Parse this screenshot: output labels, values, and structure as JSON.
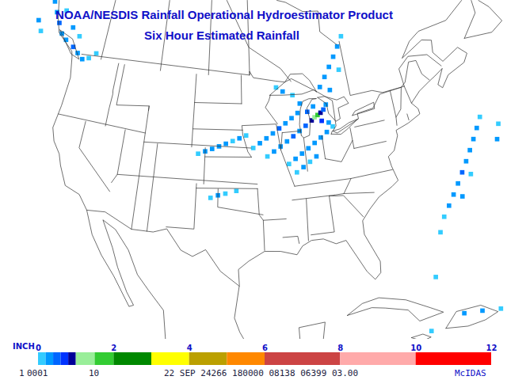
{
  "chart_data": {
    "type": "map",
    "title": "NOAA/NESDIS Rainfall Operational Hydroestimator Product",
    "subtitle": "Six Hour Estimated Rainfall",
    "colorbar": {
      "label": "INCH",
      "range": [
        0,
        12
      ],
      "ticks": [
        0,
        2,
        4,
        6,
        8,
        10,
        12
      ],
      "breaks": [
        0,
        0.2,
        0.4,
        0.6,
        0.8,
        1,
        1.5,
        2,
        3,
        4,
        5,
        6,
        8,
        10,
        12
      ],
      "colors": [
        "#33ccff",
        "#0099ff",
        "#0066ff",
        "#0033ff",
        "#000099",
        "#99ee99",
        "#33cc33",
        "#008800",
        "#ffff00",
        "#bba000",
        "#ff8800",
        "#cc4444",
        "#ffaaaa",
        "#ff0000"
      ]
    },
    "cells": [
      [
        -133,
        55.5,
        0.1
      ],
      [
        -131.5,
        54.5,
        0.2
      ],
      [
        -130.5,
        53.5,
        0.3
      ],
      [
        -129.5,
        52.5,
        0.2
      ],
      [
        -128.5,
        51.5,
        0.4
      ],
      [
        -127.5,
        50.5,
        0.3
      ],
      [
        -126.5,
        50,
        0.2
      ],
      [
        -125,
        49.5,
        0.5
      ],
      [
        -124,
        49,
        0.3
      ],
      [
        -123,
        48.5,
        0.2
      ],
      [
        -122,
        48.8,
        0.1
      ],
      [
        -126,
        51.5,
        0.2
      ],
      [
        -124.5,
        50.8,
        0.1
      ],
      [
        -128,
        53,
        0.1
      ],
      [
        -121,
        49.5,
        0.1
      ],
      [
        -132,
        51,
        0.2
      ],
      [
        -131,
        50,
        0.1
      ],
      [
        -103,
        40.3,
        0.1
      ],
      [
        -102,
        40.6,
        0.2
      ],
      [
        -101,
        40.9,
        0.2
      ],
      [
        -100,
        41.2,
        0.3
      ],
      [
        -99,
        41.5,
        0.2
      ],
      [
        -98,
        41.8,
        0.1
      ],
      [
        -97,
        42.1,
        0.2
      ],
      [
        -96,
        42.4,
        0.1
      ],
      [
        -101,
        35.5,
        0.1
      ],
      [
        -100,
        35.8,
        0.2
      ],
      [
        -99,
        36,
        0.1
      ],
      [
        -97.5,
        36.3,
        0.1
      ],
      [
        -95,
        41,
        0.1
      ],
      [
        -94,
        41.5,
        0.2
      ],
      [
        -93,
        42,
        0.3
      ],
      [
        -92,
        42.5,
        0.2
      ],
      [
        -91,
        43,
        0.4
      ],
      [
        -90,
        43.5,
        0.3
      ],
      [
        -89,
        44,
        0.2
      ],
      [
        -88,
        44.5,
        0.3
      ],
      [
        -87.5,
        45.5,
        0.2
      ],
      [
        -88.5,
        46.5,
        0.1
      ],
      [
        -90,
        47,
        0.2
      ],
      [
        -91,
        47.5,
        0.1
      ],
      [
        -93,
        40,
        0.1
      ],
      [
        -92,
        40.5,
        0.2
      ],
      [
        -91,
        41,
        0.3
      ],
      [
        -90,
        41.5,
        0.2
      ],
      [
        -89,
        42,
        0.4
      ],
      [
        -88,
        42.5,
        0.3
      ],
      [
        -87,
        43,
        0.5
      ],
      [
        -86,
        43.5,
        0.8
      ],
      [
        -85.5,
        43.8,
        1.3
      ],
      [
        -85,
        44,
        1.7
      ],
      [
        -84.5,
        44.2,
        0.9
      ],
      [
        -84,
        44.5,
        0.5
      ],
      [
        -83.5,
        45,
        0.3
      ],
      [
        -86.5,
        44.5,
        0.4
      ],
      [
        -85.5,
        45,
        0.3
      ],
      [
        -84.5,
        43.3,
        0.6
      ],
      [
        -83.5,
        43,
        0.3
      ],
      [
        -90,
        39,
        0.1
      ],
      [
        -89,
        39.5,
        0.2
      ],
      [
        -88,
        40,
        0.3
      ],
      [
        -87,
        40.5,
        0.2
      ],
      [
        -86,
        41,
        0.3
      ],
      [
        -85,
        41.5,
        0.2
      ],
      [
        -84,
        42,
        0.2
      ],
      [
        -83,
        42.5,
        0.1
      ],
      [
        -89,
        38,
        0.1
      ],
      [
        -88,
        38.5,
        0.2
      ],
      [
        -87,
        39,
        0.1
      ],
      [
        -86,
        39.5,
        0.2
      ],
      [
        -84,
        47,
        0.2
      ],
      [
        -83,
        48,
        0.3
      ],
      [
        -82,
        49,
        0.2
      ],
      [
        -81,
        50,
        0.3
      ],
      [
        -80,
        51,
        0.2
      ],
      [
        -79,
        52,
        0.1
      ],
      [
        -82.5,
        46.5,
        0.2
      ],
      [
        -80.5,
        48.5,
        0.1
      ],
      [
        -71,
        30,
        0.1
      ],
      [
        -70,
        31,
        0.2
      ],
      [
        -69,
        32,
        0.3
      ],
      [
        -68,
        33,
        0.2
      ],
      [
        -67,
        34,
        0.4
      ],
      [
        -66,
        35,
        0.3
      ],
      [
        -65,
        36,
        0.2
      ],
      [
        -64,
        37,
        0.3
      ],
      [
        -63,
        38,
        0.2
      ],
      [
        -62,
        39,
        0.1
      ],
      [
        -68,
        31.5,
        0.2
      ],
      [
        -66,
        33.5,
        0.1
      ],
      [
        -72,
        28.5,
        0.1
      ],
      [
        -61,
        36,
        0.2
      ],
      [
        -60,
        37.5,
        0.1
      ],
      [
        -74,
        24,
        0.1
      ],
      [
        -72,
        19.5,
        0.2
      ],
      [
        -70,
        19.2,
        0.3
      ],
      [
        -68,
        18.8,
        0.1
      ],
      [
        -66,
        18.4,
        0.2
      ],
      [
        -76,
        18.6,
        0.1
      ],
      [
        -65,
        17.8,
        0.1
      ],
      [
        -88,
        18.5,
        0.1
      ]
    ],
    "footer": [
      "1",
      "0001",
      "10",
      "22 SEP 24266 180000 08138 06399 03.00",
      "McIDAS"
    ]
  }
}
